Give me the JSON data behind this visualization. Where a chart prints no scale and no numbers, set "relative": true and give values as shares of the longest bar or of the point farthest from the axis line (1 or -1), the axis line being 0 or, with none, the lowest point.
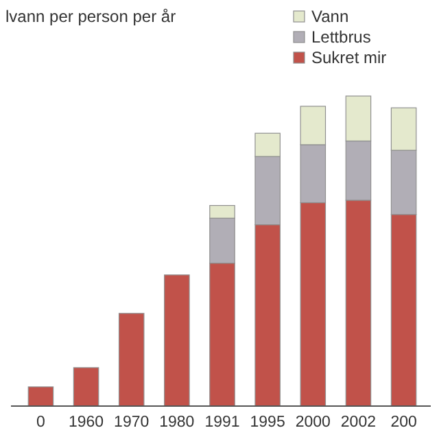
{
  "chart_data": {
    "type": "bar",
    "title": "lvann per person per år",
    "relative": true,
    "stacked": true,
    "legend": "top right",
    "categories": [
      "0",
      "1960",
      "1970",
      "1980",
      "1991",
      "1995",
      "2000",
      "2002",
      "200"
    ],
    "series": [
      {
        "name": "Sukret mir",
        "color": "#c1524a",
        "values": [
          0.062,
          0.124,
          0.299,
          0.423,
          0.461,
          0.585,
          0.656,
          0.664,
          0.618
        ]
      },
      {
        "name": "Lettbrus",
        "color": "#b1aeb6",
        "values": [
          null,
          null,
          null,
          null,
          0.145,
          0.22,
          0.187,
          0.191,
          0.207
        ]
      },
      {
        "name": "Vann",
        "color": "#e4e9cd",
        "values": [
          null,
          null,
          null,
          null,
          0.041,
          0.075,
          0.124,
          0.145,
          0.137
        ]
      }
    ]
  }
}
